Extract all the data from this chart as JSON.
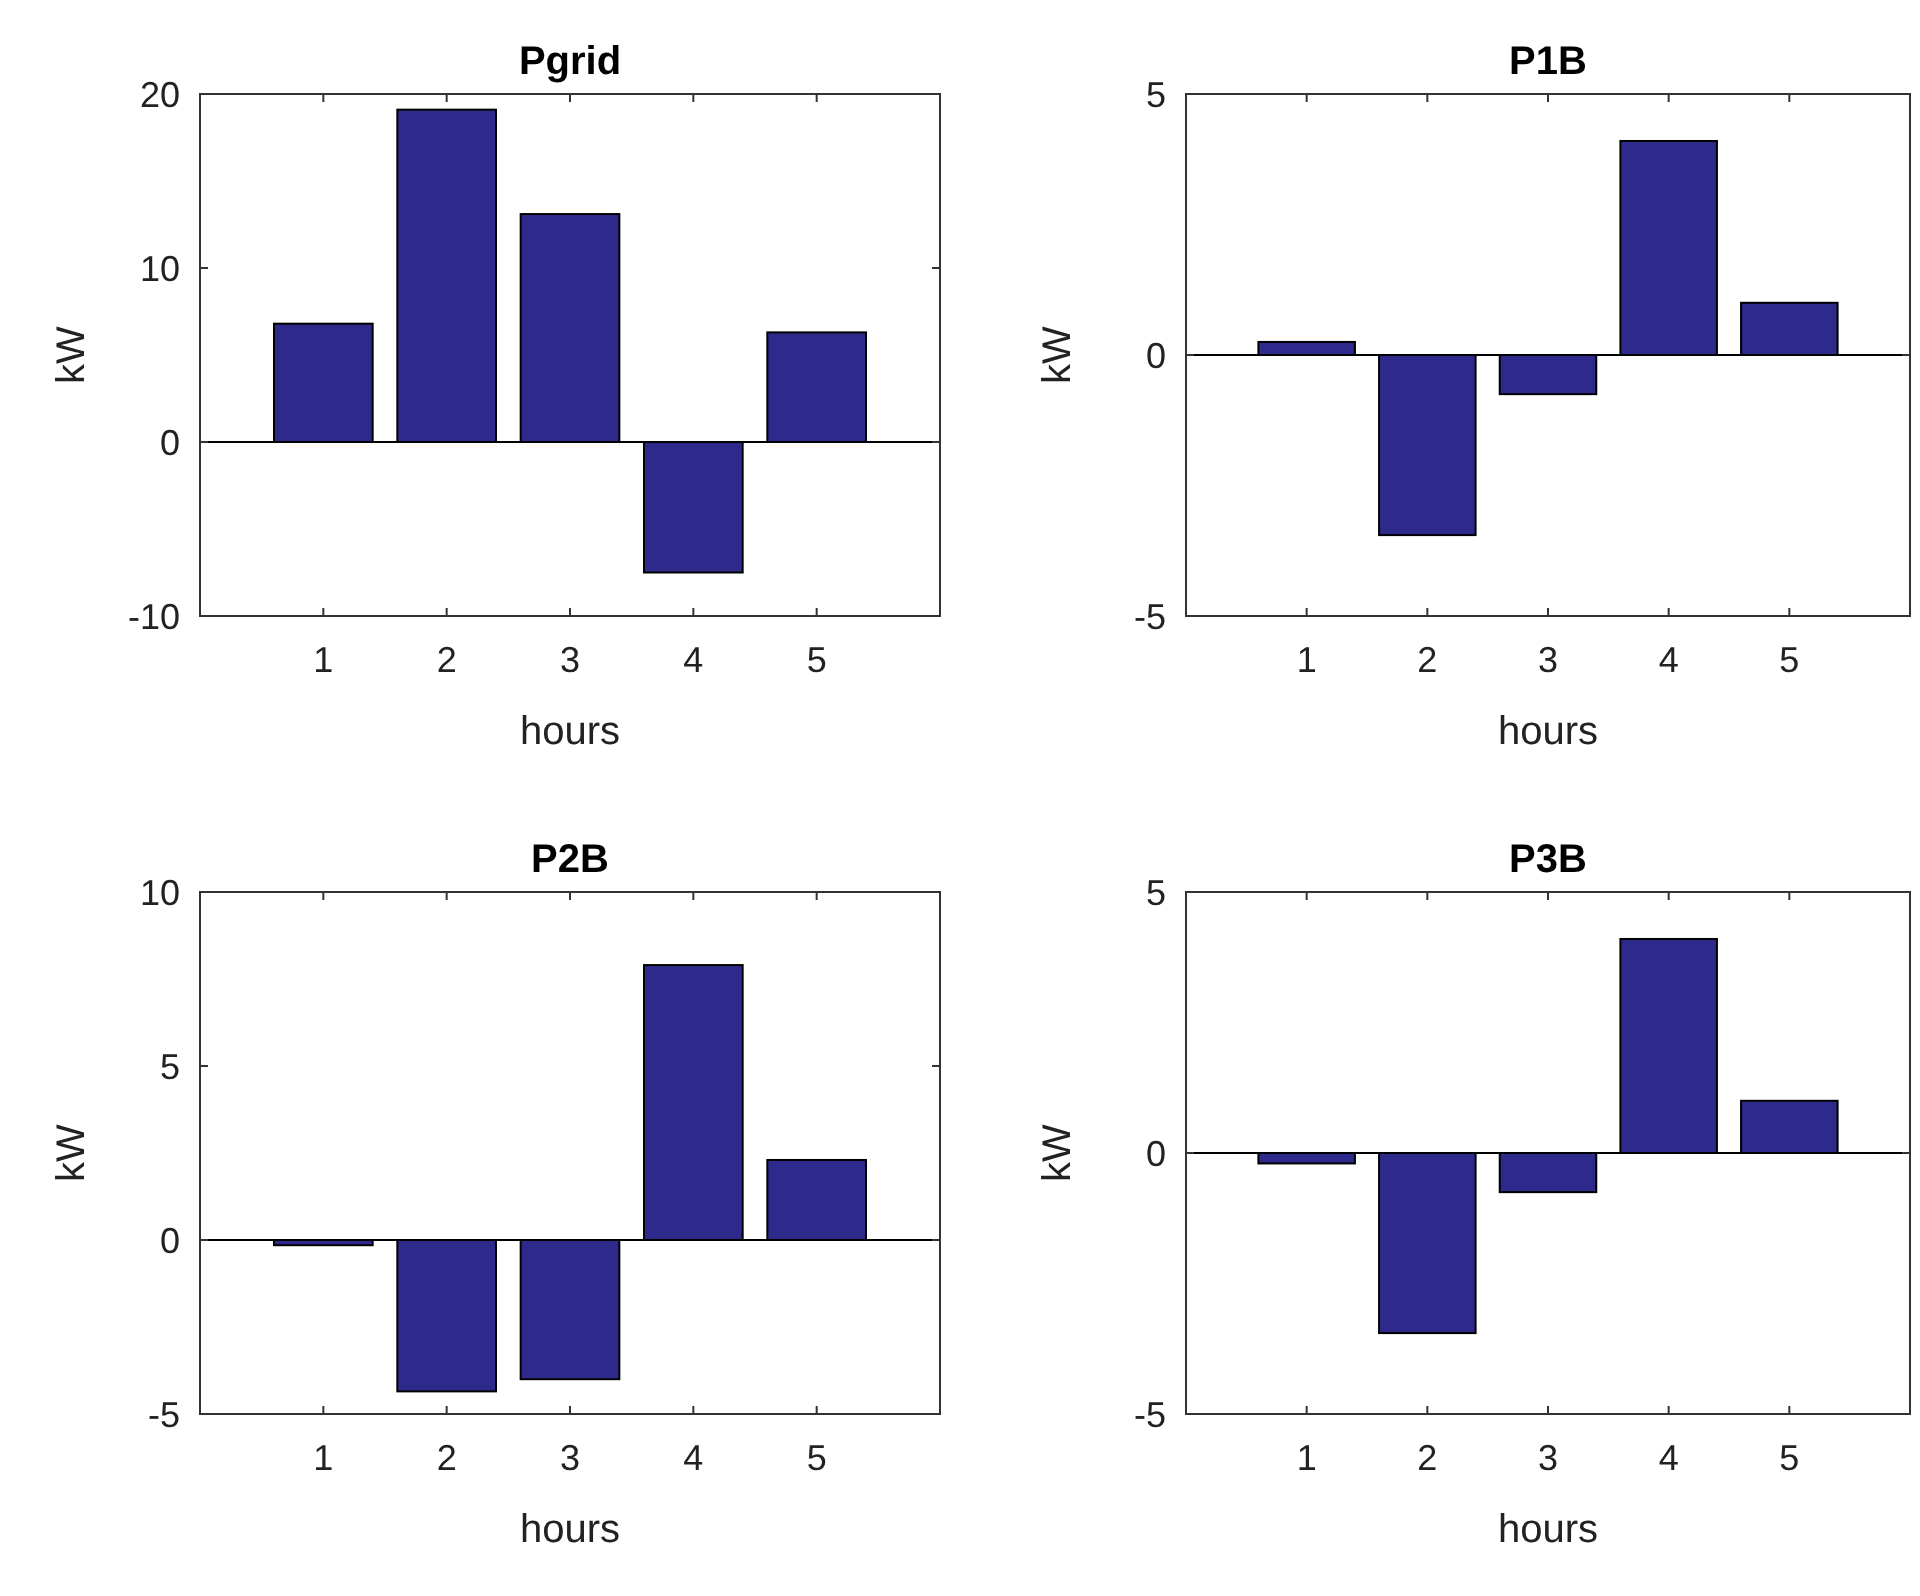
{
  "chart_data": [
    {
      "type": "bar",
      "title": "Pgrid",
      "xlabel": "hours",
      "ylabel": "kW",
      "categories": [
        "1",
        "2",
        "3",
        "4",
        "5"
      ],
      "values": [
        6.8,
        19.1,
        13.1,
        -7.5,
        6.3
      ],
      "color": "#2e2a8c",
      "ylim": [
        -10,
        20
      ],
      "yticks": [
        -10,
        0,
        10,
        20
      ]
    },
    {
      "type": "bar",
      "title": "P1B",
      "xlabel": "hours",
      "ylabel": "kW",
      "categories": [
        "1",
        "2",
        "3",
        "4",
        "5"
      ],
      "values": [
        0.25,
        -3.45,
        -0.75,
        4.1,
        1.0
      ],
      "color": "#2e2a8c",
      "ylim": [
        -5,
        5
      ],
      "yticks": [
        -5,
        0,
        5
      ]
    },
    {
      "type": "bar",
      "title": "P2B",
      "xlabel": "hours",
      "ylabel": "kW",
      "categories": [
        "1",
        "2",
        "3",
        "4",
        "5"
      ],
      "values": [
        -0.15,
        -4.35,
        -4.0,
        7.9,
        2.3
      ],
      "color": "#2e2a8c",
      "ylim": [
        -5,
        10
      ],
      "yticks": [
        -5,
        0,
        5,
        10
      ]
    },
    {
      "type": "bar",
      "title": "P3B",
      "xlabel": "hours",
      "ylabel": "kW",
      "categories": [
        "1",
        "2",
        "3",
        "4",
        "5"
      ],
      "values": [
        -0.2,
        -3.45,
        -0.75,
        4.1,
        1.0
      ],
      "color": "#2e2a8c",
      "ylim": [
        -5,
        5
      ],
      "yticks": [
        -5,
        0,
        5
      ]
    }
  ]
}
